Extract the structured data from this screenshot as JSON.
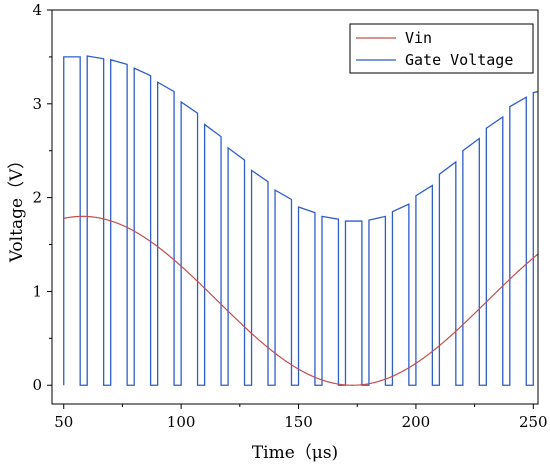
{
  "chart_data": {
    "type": "line",
    "title": "",
    "xlabel": "Time（μs)",
    "ylabel": "Voltage（V）",
    "xlim": [
      45,
      252
    ],
    "ylim": [
      -0.2,
      4
    ],
    "x_ticks": [
      "50",
      "100",
      "150",
      "200",
      "250"
    ],
    "y_ticks": [
      "0",
      "1",
      "2",
      "3",
      "4"
    ],
    "grid": false,
    "legend_position": "top-right",
    "legend": [
      "Vin",
      "Gate Voltage"
    ],
    "series": [
      {
        "name": "Vin",
        "color": "#c0504d",
        "model": "sine",
        "offset": 0.9,
        "amplitude": 0.9,
        "period_us": 230,
        "peak_at_us": 58,
        "x_range": [
          50,
          252
        ]
      },
      {
        "name": "Gate Voltage",
        "color": "#2e5ec8",
        "model": "pwm",
        "period_us": 10,
        "first_pulse_start_us": 50,
        "pulses": [
          {
            "start": 50,
            "end": 57,
            "high_start": 3.5,
            "high_end": 3.5
          },
          {
            "start": 60,
            "end": 67,
            "high_start": 3.51,
            "high_end": 3.48
          },
          {
            "start": 70,
            "end": 77,
            "high_start": 3.47,
            "high_end": 3.42
          },
          {
            "start": 80,
            "end": 87,
            "high_start": 3.38,
            "high_end": 3.3
          },
          {
            "start": 90,
            "end": 97,
            "high_start": 3.23,
            "high_end": 3.13
          },
          {
            "start": 100,
            "end": 107,
            "high_start": 3.02,
            "high_end": 2.9
          },
          {
            "start": 110,
            "end": 117,
            "high_start": 2.78,
            "high_end": 2.65
          },
          {
            "start": 120,
            "end": 127,
            "high_start": 2.53,
            "high_end": 2.4
          },
          {
            "start": 130,
            "end": 137,
            "high_start": 2.29,
            "high_end": 2.17
          },
          {
            "start": 140,
            "end": 147,
            "high_start": 2.08,
            "high_end": 1.98
          },
          {
            "start": 150,
            "end": 157,
            "high_start": 1.9,
            "high_end": 1.84
          },
          {
            "start": 160,
            "end": 167,
            "high_start": 1.8,
            "high_end": 1.77
          },
          {
            "start": 170,
            "end": 177,
            "high_start": 1.75,
            "high_end": 1.75
          },
          {
            "start": 180,
            "end": 187,
            "high_start": 1.76,
            "high_end": 1.8
          },
          {
            "start": 190,
            "end": 197,
            "high_start": 1.85,
            "high_end": 1.93
          },
          {
            "start": 200,
            "end": 207,
            "high_start": 2.02,
            "high_end": 2.13
          },
          {
            "start": 210,
            "end": 217,
            "high_start": 2.25,
            "high_end": 2.38
          },
          {
            "start": 220,
            "end": 227,
            "high_start": 2.5,
            "high_end": 2.63
          },
          {
            "start": 230,
            "end": 237,
            "high_start": 2.74,
            "high_end": 2.86
          },
          {
            "start": 240,
            "end": 247,
            "high_start": 2.97,
            "high_end": 3.07
          },
          {
            "start": 250,
            "end": 252,
            "high_start": 3.12,
            "high_end": 3.13
          }
        ]
      }
    ]
  }
}
